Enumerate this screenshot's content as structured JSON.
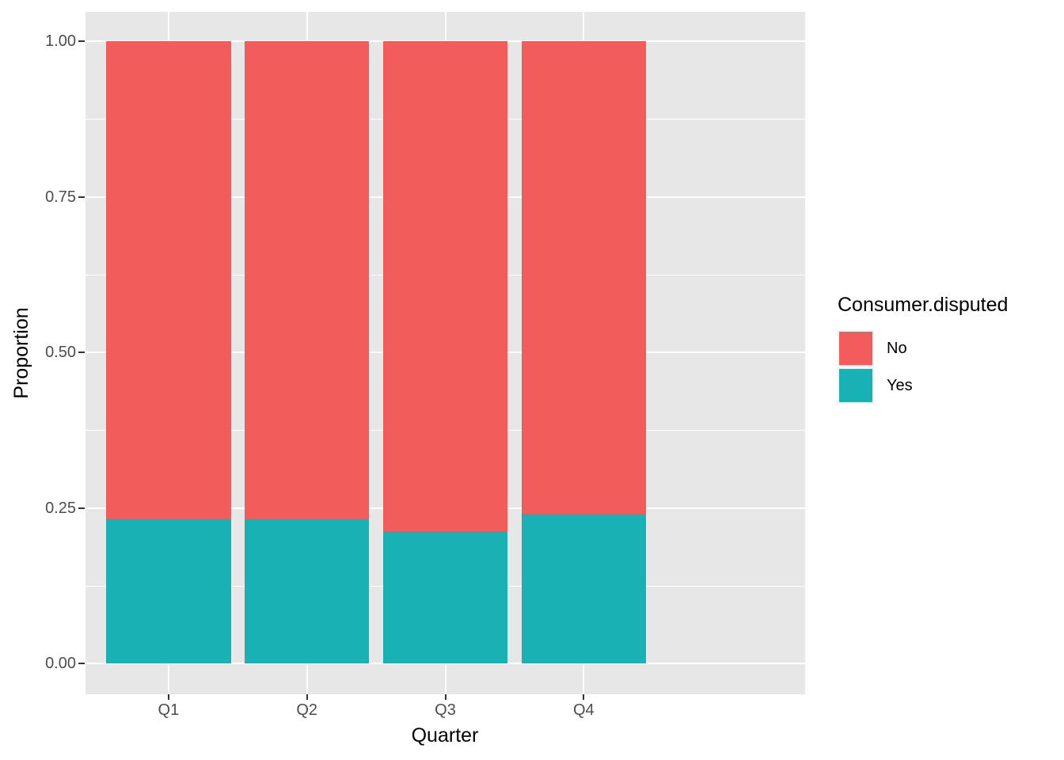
{
  "chart_data": {
    "type": "bar",
    "stacked": true,
    "normalized": true,
    "title": "",
    "xlabel": "Quarter",
    "ylabel": "Proportion",
    "categories": [
      "Q1",
      "Q2",
      "Q3",
      "Q4"
    ],
    "series": [
      {
        "name": "Yes",
        "color": "#19B2B4",
        "values": [
          0.232,
          0.231,
          0.213,
          0.241
        ]
      },
      {
        "name": "No",
        "color": "#F25C5A",
        "values": [
          0.768,
          0.769,
          0.787,
          0.759
        ]
      }
    ],
    "ylim": [
      0,
      1
    ],
    "y_major_ticks": [
      0,
      0.25,
      0.5,
      0.75,
      1.0
    ],
    "y_tick_labels": [
      "0.00",
      "0.25",
      "0.50",
      "0.75",
      "1.00"
    ],
    "y_minor_ticks": [
      0.125,
      0.375,
      0.625,
      0.875
    ],
    "grid": true,
    "panel_bg": "#E7E7E7",
    "grid_color": "#FFFFFF",
    "axis_text_color": "#4D4D4D",
    "legend": {
      "title": "Consumer.disputed",
      "position": "right",
      "entries": [
        {
          "label": "No",
          "color": "#F25C5A"
        },
        {
          "label": "Yes",
          "color": "#19B2B4"
        }
      ]
    }
  }
}
